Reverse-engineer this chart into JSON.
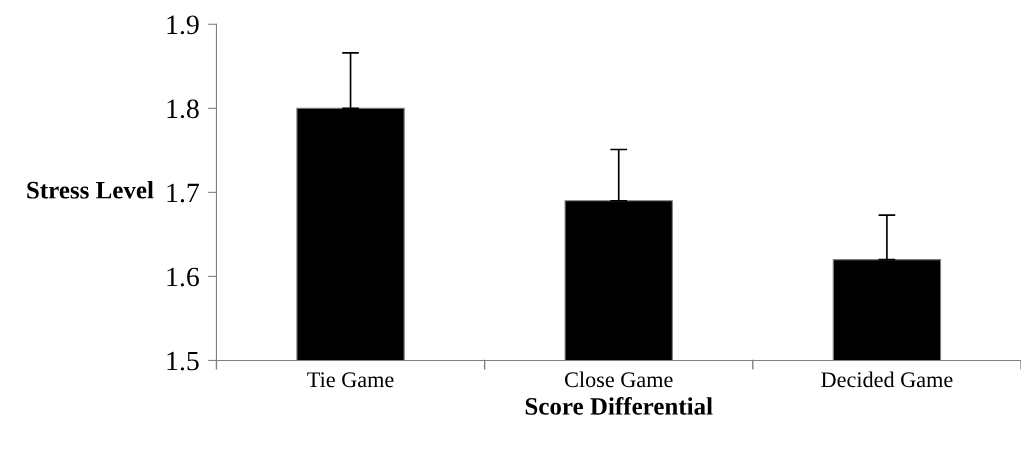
{
  "chart_data": {
    "type": "bar",
    "xlabel": "Score Differential",
    "ylabel": "Stress Level",
    "categories": [
      "Tie Game",
      "Close Game",
      "Decided Game"
    ],
    "values": [
      1.8,
      1.69,
      1.62
    ],
    "color": "#000000",
    "errors": [
      [
        1.8,
        1.866
      ],
      [
        1.69,
        1.751
      ],
      [
        1.62,
        1.673
      ]
    ],
    "ylim": [
      1.5,
      1.9
    ],
    "yticks": [
      1.5,
      1.6,
      1.7,
      1.8,
      1.9
    ],
    "grid": false,
    "legend": false
  }
}
